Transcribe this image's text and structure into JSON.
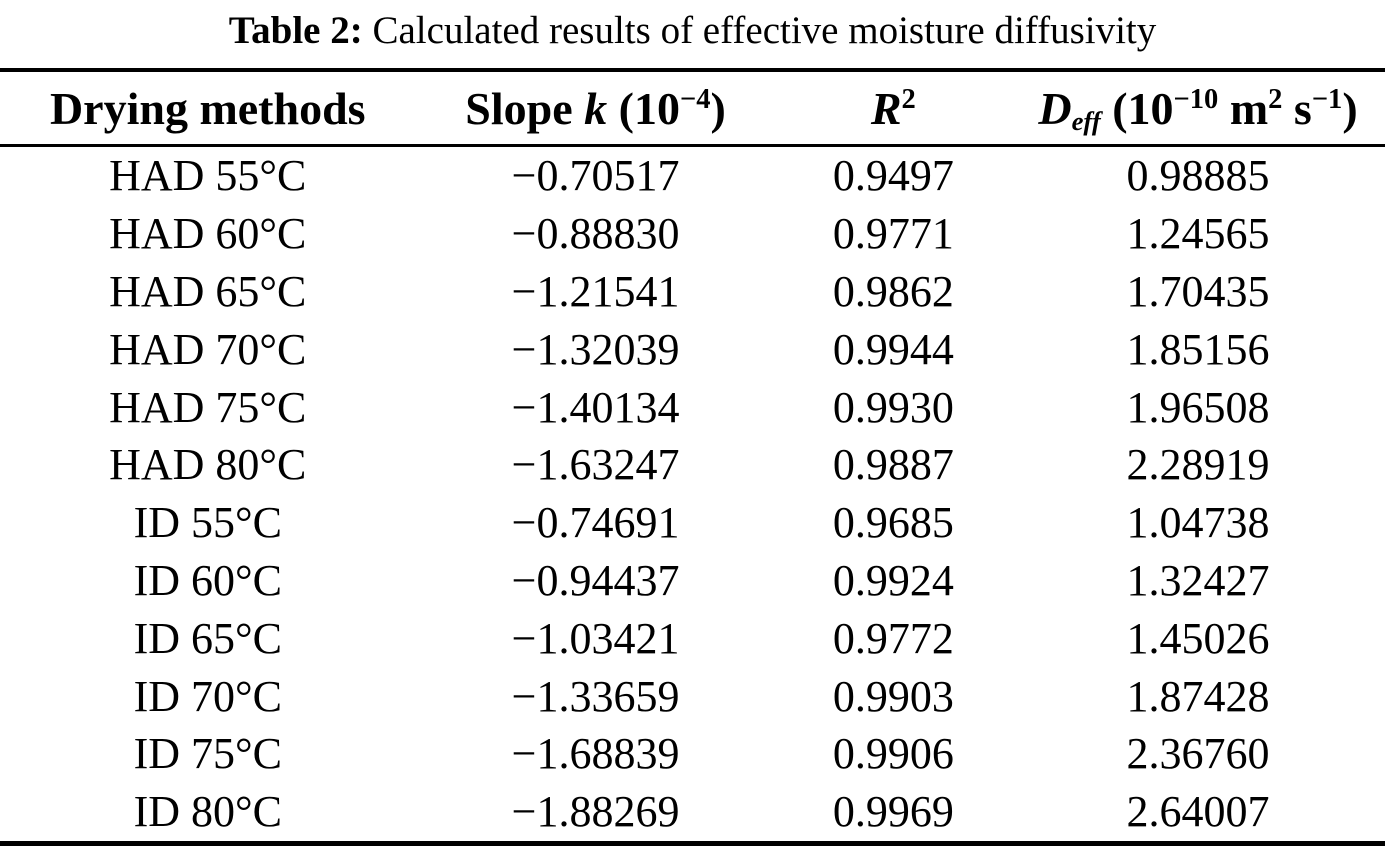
{
  "table": {
    "caption": {
      "label": "Table 2:",
      "text": "Calculated results of effective moisture diffusivity"
    },
    "columns": {
      "method": {
        "label": "Drying methods"
      },
      "slope": {
        "pre": "Slope ",
        "var": "k",
        "open": " (10",
        "exp": "−4",
        "close": ")"
      },
      "r2": {
        "var": "R",
        "exp": "2"
      },
      "deff": {
        "var": "D",
        "sub": "eff",
        "open": " (10",
        "exp1": "−10",
        "unit1": " m",
        "exp2": "2",
        "unit2": " s",
        "exp3": "−1",
        "close": ")"
      }
    },
    "rows": [
      {
        "method": "HAD 55°C",
        "slope": "−0.70517",
        "r2": "0.9497",
        "deff": "0.98885"
      },
      {
        "method": "HAD 60°C",
        "slope": "−0.88830",
        "r2": "0.9771",
        "deff": "1.24565"
      },
      {
        "method": "HAD 65°C",
        "slope": "−1.21541",
        "r2": "0.9862",
        "deff": "1.70435"
      },
      {
        "method": "HAD 70°C",
        "slope": "−1.32039",
        "r2": "0.9944",
        "deff": "1.85156"
      },
      {
        "method": "HAD 75°C",
        "slope": "−1.40134",
        "r2": "0.9930",
        "deff": "1.96508"
      },
      {
        "method": "HAD 80°C",
        "slope": "−1.63247",
        "r2": "0.9887",
        "deff": "2.28919"
      },
      {
        "method": "ID 55°C",
        "slope": "−0.74691",
        "r2": "0.9685",
        "deff": "1.04738"
      },
      {
        "method": "ID 60°C",
        "slope": "−0.94437",
        "r2": "0.9924",
        "deff": "1.32427"
      },
      {
        "method": "ID 65°C",
        "slope": "−1.03421",
        "r2": "0.9772",
        "deff": "1.45026"
      },
      {
        "method": "ID 70°C",
        "slope": "−1.33659",
        "r2": "0.9903",
        "deff": "1.87428"
      },
      {
        "method": "ID 75°C",
        "slope": "−1.68839",
        "r2": "0.9906",
        "deff": "2.36760"
      },
      {
        "method": "ID 80°C",
        "slope": "−1.88269",
        "r2": "0.9969",
        "deff": "2.64007"
      }
    ]
  }
}
